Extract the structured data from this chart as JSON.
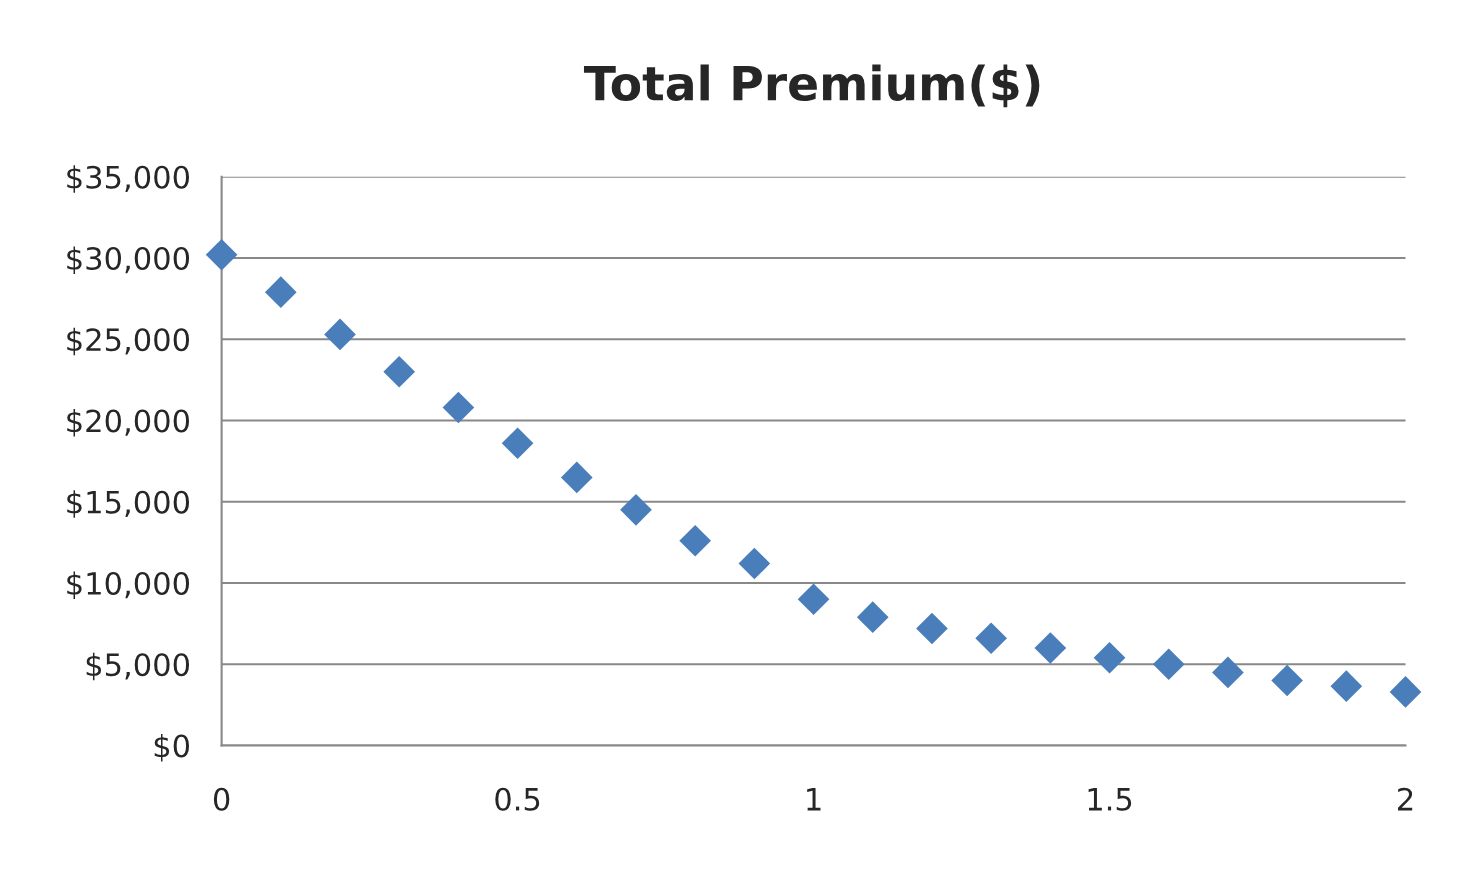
{
  "chart_data": {
    "type": "scatter",
    "title": "Total Premium($)",
    "x": [
      0,
      0.1,
      0.2,
      0.3,
      0.4,
      0.5,
      0.6,
      0.7,
      0.8,
      0.9,
      1.0,
      1.1,
      1.2,
      1.3,
      1.4,
      1.5,
      1.6,
      1.7,
      1.8,
      1.9,
      2.0
    ],
    "series": [
      {
        "color": "#4a7ebb",
        "values": [
          30200,
          27900,
          25300,
          23000,
          20800,
          18600,
          16500,
          14500,
          12600,
          11200,
          9000,
          7900,
          7200,
          6600,
          6000,
          5400,
          5000,
          4500,
          4000,
          3650,
          3300
        ]
      }
    ],
    "marker": "diamond",
    "grid": "y",
    "xlim": [
      0,
      2
    ],
    "xticks": [
      0,
      0.5,
      1,
      1.5,
      2
    ],
    "ylim": [
      0,
      35000
    ],
    "yticks": [
      {
        "value": 0,
        "label": "$0"
      },
      {
        "value": 5000,
        "label": "$5,000"
      },
      {
        "value": 10000,
        "label": "$10,000"
      },
      {
        "value": 15000,
        "label": "$15,000"
      },
      {
        "value": 20000,
        "label": "$20,000"
      },
      {
        "value": 25000,
        "label": "$25,000"
      },
      {
        "value": 30000,
        "label": "$30,000"
      },
      {
        "value": 35000,
        "label": "$35,000"
      }
    ]
  }
}
